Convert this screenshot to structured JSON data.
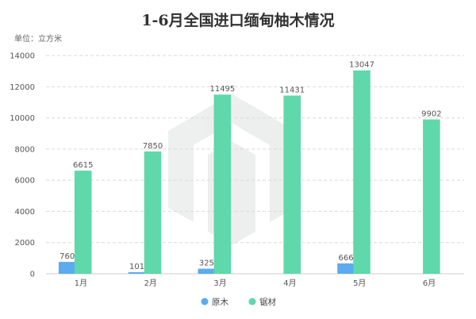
{
  "chart_data": {
    "type": "bar",
    "title": "1-6月全国进口缅甸柚木情况",
    "unit_label": "单位：立方米",
    "categories": [
      "1月",
      "2月",
      "3月",
      "4月",
      "5月",
      "6月"
    ],
    "series": [
      {
        "name": "原木",
        "color": "#5aabf0",
        "values": [
          760,
          101,
          325,
          null,
          666,
          null
        ]
      },
      {
        "name": "锯材",
        "color": "#5fd8ab",
        "values": [
          6615,
          7850,
          11495,
          11431,
          13047,
          9902
        ]
      }
    ],
    "ylim": [
      0,
      14000
    ],
    "yticks": [
      0,
      2000,
      4000,
      6000,
      8000,
      10000,
      12000,
      14000
    ],
    "grid": true,
    "legend_position": "bottom"
  }
}
